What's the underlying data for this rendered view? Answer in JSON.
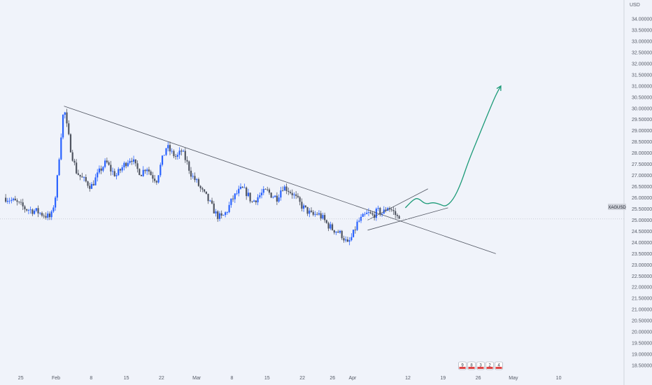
{
  "chart_data": {
    "type": "candlestick",
    "symbol_label": "XAGUSD",
    "currency_label": "USD",
    "last_price": 25.05,
    "ylim": [
      18.0,
      34.5
    ],
    "y_ticks": [
      "18.50000",
      "19.00000",
      "19.50000",
      "20.00000",
      "20.50000",
      "21.00000",
      "21.50000",
      "22.00000",
      "22.50000",
      "23.00000",
      "23.50000",
      "24.00000",
      "24.50000",
      "25.00000",
      "25.50000",
      "26.00000",
      "26.50000",
      "27.00000",
      "27.50000",
      "28.00000",
      "28.50000",
      "29.00000",
      "29.50000",
      "30.00000",
      "30.50000",
      "31.00000",
      "31.50000",
      "32.00000",
      "32.50000",
      "33.00000",
      "33.50000",
      "34.00000"
    ],
    "y_tick_values": [
      18.5,
      19.0,
      19.5,
      20.0,
      20.5,
      21.0,
      21.5,
      22.0,
      22.5,
      23.0,
      23.5,
      24.0,
      24.5,
      25.0,
      25.5,
      26.0,
      26.5,
      27.0,
      27.5,
      28.0,
      28.5,
      29.0,
      29.5,
      30.0,
      30.5,
      31.0,
      31.5,
      32.0,
      32.5,
      33.0,
      33.5,
      34.0
    ],
    "x_ticks": [
      "25",
      "Feb",
      "8",
      "15",
      "22",
      "Mar",
      "8",
      "15",
      "22",
      "26",
      "Apr",
      "12",
      "19",
      "26",
      "May",
      "10"
    ],
    "x_tick_days": [
      -7,
      0,
      7,
      14,
      21,
      28,
      35,
      42,
      49,
      55,
      59,
      70,
      77,
      84,
      91,
      100
    ],
    "x_tick_note": "day offset from Feb 1",
    "price_path": [
      [
        -10,
        26.0
      ],
      [
        -8,
        25.8
      ],
      [
        -6,
        25.5
      ],
      [
        -4,
        25.4
      ],
      [
        -2,
        25.2
      ],
      [
        -1,
        25.1
      ],
      [
        0,
        26.2
      ],
      [
        0.5,
        27.5
      ],
      [
        1,
        28.8
      ],
      [
        1.6,
        30.1
      ],
      [
        2,
        29.4
      ],
      [
        3,
        28.1
      ],
      [
        4,
        27.2
      ],
      [
        5,
        26.9
      ],
      [
        6,
        26.7
      ],
      [
        7,
        26.5
      ],
      [
        8,
        26.9
      ],
      [
        9,
        27.3
      ],
      [
        10,
        27.6
      ],
      [
        11,
        27.2
      ],
      [
        12,
        27.0
      ],
      [
        13,
        27.3
      ],
      [
        14,
        27.6
      ],
      [
        15,
        27.8
      ],
      [
        16,
        27.3
      ],
      [
        17,
        27.1
      ],
      [
        18,
        27.4
      ],
      [
        19,
        27.0
      ],
      [
        20,
        26.8
      ],
      [
        21,
        27.6
      ],
      [
        22,
        28.3
      ],
      [
        23,
        28.0
      ],
      [
        24,
        27.8
      ],
      [
        25,
        28.1
      ],
      [
        26,
        27.6
      ],
      [
        27,
        27.0
      ],
      [
        28,
        26.7
      ],
      [
        29,
        26.3
      ],
      [
        30,
        26.0
      ],
      [
        31,
        25.6
      ],
      [
        32,
        25.2
      ],
      [
        33,
        25.1
      ],
      [
        34,
        25.4
      ],
      [
        35,
        25.9
      ],
      [
        36,
        26.2
      ],
      [
        37,
        26.4
      ],
      [
        38,
        26.2
      ],
      [
        39,
        25.8
      ],
      [
        40,
        26.0
      ],
      [
        41,
        26.2
      ],
      [
        42,
        26.3
      ],
      [
        43,
        26.1
      ],
      [
        44,
        26.0
      ],
      [
        45,
        26.5
      ],
      [
        46,
        26.4
      ],
      [
        47,
        26.2
      ],
      [
        48,
        25.9
      ],
      [
        49,
        25.6
      ],
      [
        50,
        25.4
      ],
      [
        51,
        25.2
      ],
      [
        52,
        25.3
      ],
      [
        53,
        25.1
      ],
      [
        54,
        24.8
      ],
      [
        55,
        24.6
      ],
      [
        56,
        24.5
      ],
      [
        57,
        24.3
      ],
      [
        58,
        23.9
      ],
      [
        59,
        24.3
      ],
      [
        60,
        24.9
      ],
      [
        61,
        25.1
      ],
      [
        62,
        25.3
      ],
      [
        63,
        25.2
      ],
      [
        64,
        25.4
      ],
      [
        65,
        25.3
      ],
      [
        66,
        25.6
      ],
      [
        67,
        25.4
      ],
      [
        68,
        25.1
      ],
      [
        68.5,
        25.3
      ]
    ],
    "drawings": {
      "resistance_line": {
        "from": [
          1.6,
          30.1
        ],
        "to": [
          87.5,
          23.5
        ]
      },
      "wedge_upper": {
        "from": [
          62,
          25.0
        ],
        "to": [
          74,
          26.4
        ]
      },
      "wedge_lower": {
        "from": [
          62,
          24.55
        ],
        "to": [
          78,
          25.55
        ]
      },
      "projection_path": [
        [
          69.5,
          25.55
        ],
        [
          71,
          25.9
        ],
        [
          72,
          26.0
        ],
        [
          73.5,
          25.7
        ],
        [
          75,
          25.8
        ],
        [
          76.5,
          25.7
        ],
        [
          77.5,
          25.6
        ],
        [
          79,
          25.9
        ],
        [
          80.5,
          26.6
        ],
        [
          82,
          27.6
        ],
        [
          84,
          28.7
        ],
        [
          86,
          29.8
        ],
        [
          87.5,
          30.6
        ],
        [
          88.5,
          31.0
        ]
      ],
      "projection_color": "#1b9a77"
    },
    "colors": {
      "up_candle": "#2962ff",
      "down_candle": "#505561",
      "trendline": "#505561",
      "background": "#f0f3fa",
      "last_price_bg": "#d1d4dc"
    },
    "grid": false
  },
  "marker_badges": [
    "9",
    "8",
    "3",
    "2",
    "4"
  ]
}
